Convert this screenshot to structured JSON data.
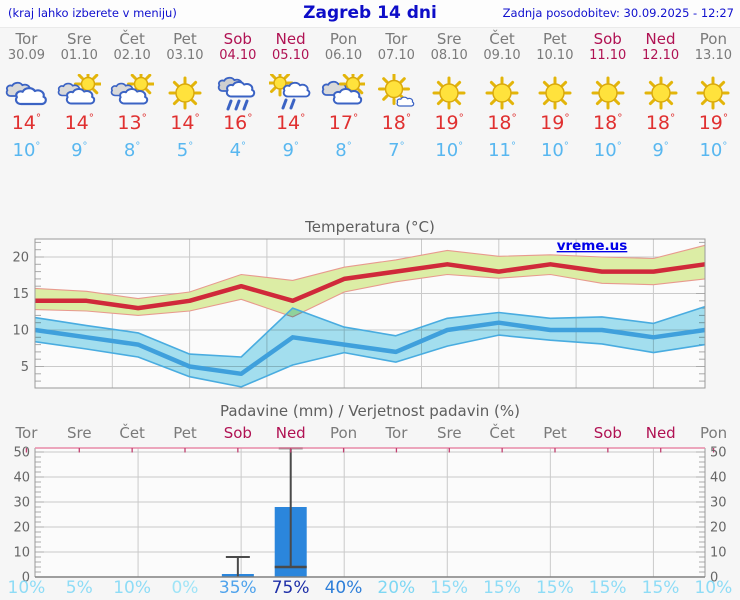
{
  "header": {
    "left_note": "(kraj lahko izberete v meniju)",
    "title": "Zagreb 14 dni",
    "updated": "Zadnja posodobitev: 30.09.2025 - 12:27"
  },
  "degree_symbol": "°",
  "watermark": "vreme.us",
  "days": [
    {
      "name": "Tor",
      "date": "30.09",
      "weekend": false,
      "icon": "cloudy",
      "tmax": 14,
      "tmin": 10,
      "precip_prob": "10%",
      "prob_color": "#8EDCF6"
    },
    {
      "name": "Sre",
      "date": "01.10",
      "weekend": false,
      "icon": "sun-cloud",
      "tmax": 14,
      "tmin": 9,
      "precip_prob": "5%",
      "prob_color": "#8EDCF6"
    },
    {
      "name": "Čet",
      "date": "02.10",
      "weekend": false,
      "icon": "sun-cloud",
      "tmax": 13,
      "tmin": 8,
      "precip_prob": "10%",
      "prob_color": "#8EDCF6"
    },
    {
      "name": "Pet",
      "date": "03.10",
      "weekend": false,
      "icon": "sunny",
      "tmax": 14,
      "tmin": 5,
      "precip_prob": "0%",
      "prob_color": "#9FE4F7"
    },
    {
      "name": "Sob",
      "date": "04.10",
      "weekend": true,
      "icon": "rain",
      "tmax": 16,
      "tmin": 4,
      "precip_prob": "35%",
      "prob_color": "#4FA3EC"
    },
    {
      "name": "Ned",
      "date": "05.10",
      "weekend": true,
      "icon": "sun-rain",
      "tmax": 14,
      "tmin": 9,
      "precip_prob": "75%",
      "prob_color": "#1E2FA8"
    },
    {
      "name": "Pon",
      "date": "06.10",
      "weekend": false,
      "icon": "cloud-sun",
      "tmax": 17,
      "tmin": 8,
      "precip_prob": "40%",
      "prob_color": "#2E7FD9"
    },
    {
      "name": "Tor",
      "date": "07.10",
      "weekend": false,
      "icon": "sun-small-cloud",
      "tmax": 18,
      "tmin": 7,
      "precip_prob": "20%",
      "prob_color": "#7ED7F3"
    },
    {
      "name": "Sre",
      "date": "08.10",
      "weekend": false,
      "icon": "sunny",
      "tmax": 19,
      "tmin": 10,
      "precip_prob": "15%",
      "prob_color": "#8EDCF6"
    },
    {
      "name": "Čet",
      "date": "09.10",
      "weekend": false,
      "icon": "sunny",
      "tmax": 18,
      "tmin": 11,
      "precip_prob": "15%",
      "prob_color": "#8EDCF6"
    },
    {
      "name": "Pet",
      "date": "10.10",
      "weekend": false,
      "icon": "sunny",
      "tmax": 19,
      "tmin": 10,
      "precip_prob": "15%",
      "prob_color": "#8EDCF6"
    },
    {
      "name": "Sob",
      "date": "11.10",
      "weekend": true,
      "icon": "sunny",
      "tmax": 18,
      "tmin": 10,
      "precip_prob": "15%",
      "prob_color": "#8EDCF6"
    },
    {
      "name": "Ned",
      "date": "12.10",
      "weekend": true,
      "icon": "sunny",
      "tmax": 18,
      "tmin": 9,
      "precip_prob": "15%",
      "prob_color": "#8EDCF6"
    },
    {
      "name": "Pon",
      "date": "13.10",
      "weekend": false,
      "icon": "sunny",
      "tmax": 19,
      "tmin": 10,
      "precip_prob": "10%",
      "prob_color": "#8EDCF6"
    }
  ],
  "chart_data": [
    {
      "type": "line",
      "title": "Temperatura (°C)",
      "categories": [
        "Tor",
        "Sre",
        "Čet",
        "Pet",
        "Sob",
        "Ned",
        "Pon",
        "Tor",
        "Sre",
        "Čet",
        "Pet",
        "Sob",
        "Ned",
        "Pon"
      ],
      "ylim": [
        2,
        22.5
      ],
      "yticks": [
        5,
        10,
        15,
        20
      ],
      "grid": true,
      "watermark": "vreme.us",
      "series": [
        {
          "name": "max-temp",
          "color": "#D0293A",
          "values": [
            14,
            14,
            13,
            14,
            16,
            14,
            17,
            18,
            19,
            18,
            19,
            18,
            18,
            19
          ]
        },
        {
          "name": "min-temp",
          "color": "#3FA0DC",
          "values": [
            10,
            9,
            8,
            5,
            4,
            9,
            8,
            7,
            10,
            11,
            10,
            10,
            9,
            10
          ]
        }
      ],
      "bands": [
        {
          "name": "max-temp-range",
          "fill": "#DCEDA5",
          "edge": "#E89A8E",
          "upper": [
            15.7,
            15.3,
            14.3,
            15.2,
            17.6,
            16.8,
            18.6,
            19.6,
            20.9,
            20.1,
            20.3,
            20.0,
            19.8,
            21.6
          ],
          "lower": [
            12.8,
            12.6,
            12.0,
            12.6,
            14.2,
            11.8,
            15.2,
            16.6,
            17.6,
            17.1,
            17.6,
            16.4,
            16.2,
            17.0
          ]
        },
        {
          "name": "min-temp-range",
          "fill": "#A6E2F2",
          "edge": "#49ACE0",
          "upper": [
            11.7,
            10.6,
            9.6,
            6.7,
            6.3,
            13.0,
            10.4,
            9.2,
            11.6,
            12.4,
            11.6,
            11.8,
            10.9,
            13.2
          ],
          "lower": [
            8.4,
            7.4,
            6.3,
            3.6,
            2.2,
            5.2,
            6.9,
            5.6,
            7.8,
            9.3,
            8.6,
            8.1,
            6.9,
            8.0
          ]
        }
      ]
    },
    {
      "type": "bar",
      "title": "Padavine (mm) / Verjetnost padavin (%)",
      "categories": [
        "Tor",
        "Sre",
        "Čet",
        "Pet",
        "Sob",
        "Ned",
        "Pon",
        "Tor",
        "Sre",
        "Čet",
        "Pet",
        "Sob",
        "Ned",
        "Pon"
      ],
      "values_mm": [
        0,
        0,
        0,
        0,
        1.2,
        28,
        0,
        0,
        0,
        0,
        0,
        0,
        0,
        0
      ],
      "ranges_mm": [
        null,
        null,
        null,
        null,
        [
          0,
          8
        ],
        [
          4,
          51.5
        ],
        null,
        null,
        null,
        null,
        null,
        null,
        null,
        null
      ],
      "probabilities_pct": [
        10,
        5,
        10,
        0,
        35,
        75,
        40,
        20,
        15,
        15,
        15,
        15,
        15,
        10
      ],
      "ylim": [
        0,
        50
      ],
      "yticks": [
        0,
        10,
        20,
        30,
        40,
        50
      ],
      "grid": true,
      "bar_color": "#2B86DC"
    }
  ],
  "colors": {
    "header_text": "#1010CE",
    "weekday_text": "#7A7A7A",
    "weekend_text": "#B01253",
    "tmax_text": "#E03030",
    "tmin_text": "#58B7F0",
    "chart_title": "#5E5E5E",
    "grid": "#CACACA",
    "frame": "#9A9A9A",
    "tick": "#ABABAB",
    "precip_top_line": "#E88AA8",
    "precip_tick": "#C04070",
    "whisker": "#4A4A4A",
    "watermark": "#0000E8",
    "plot_bg": "#FBFBFB"
  }
}
